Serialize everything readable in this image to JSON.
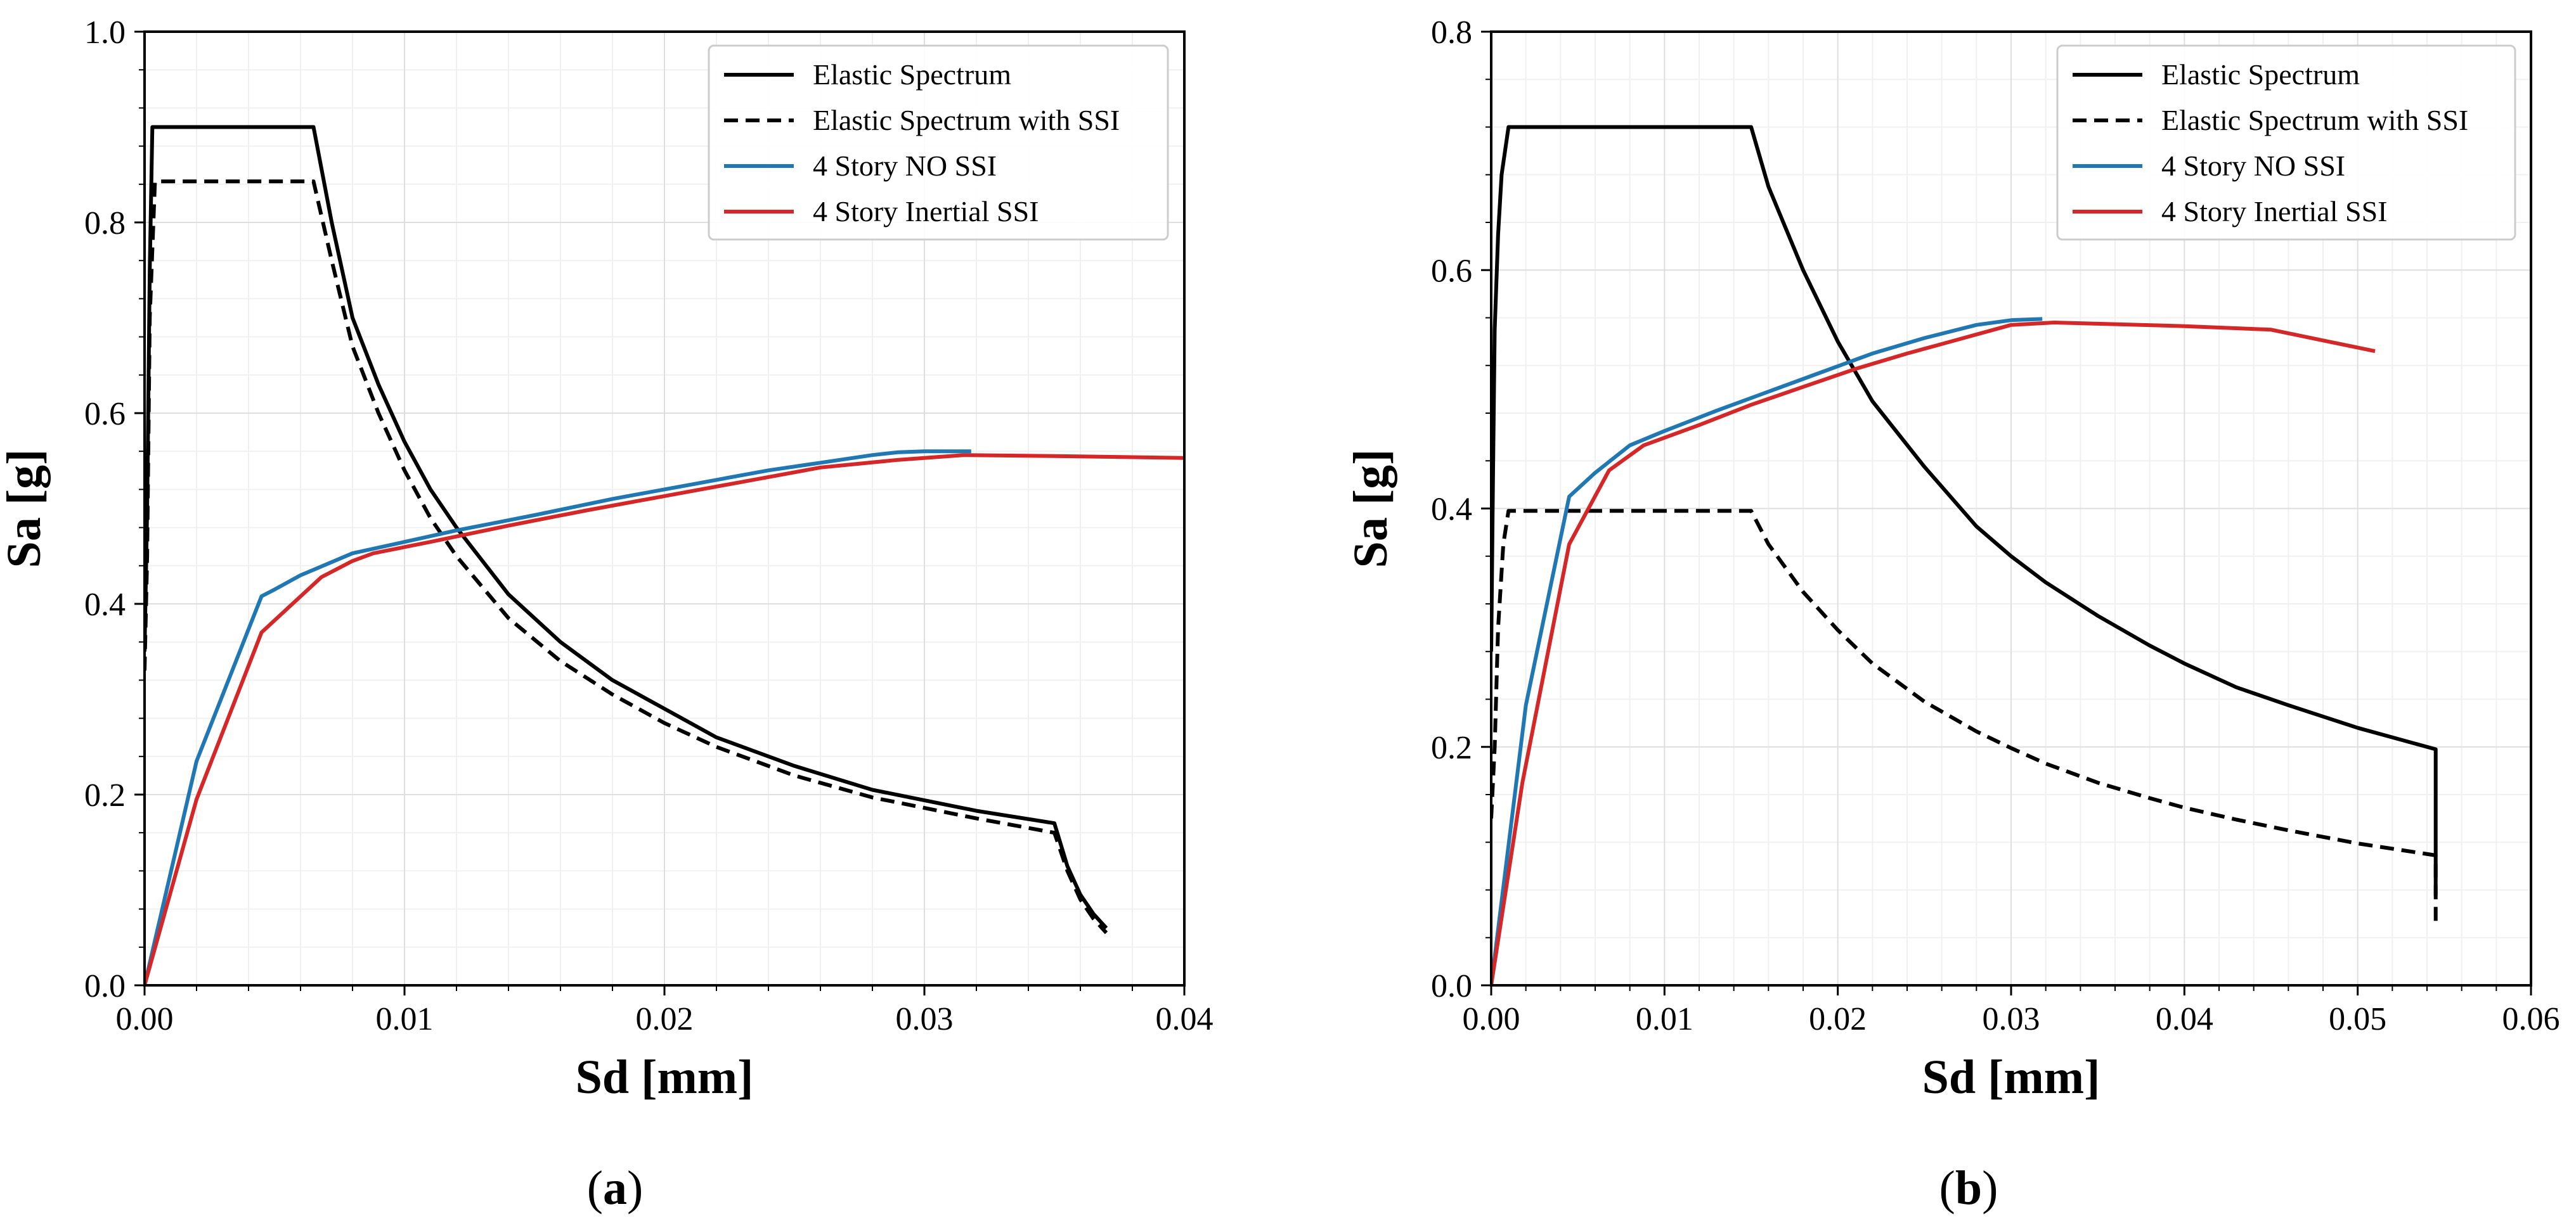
{
  "chart_data": [
    {
      "type": "line",
      "panel_id": "a",
      "caption_letter": "a",
      "xlabel": "Sd [mm]",
      "ylabel": "Sa [g]",
      "xlim": [
        0,
        0.04
      ],
      "ylim": [
        0,
        1.0
      ],
      "xticks": [
        0.0,
        0.01,
        0.02,
        0.03,
        0.04
      ],
      "xtick_labels": [
        "0.00",
        "0.01",
        "0.02",
        "0.03",
        "0.04"
      ],
      "yticks": [
        0.0,
        0.2,
        0.4,
        0.6,
        0.8,
        1.0
      ],
      "ytick_labels": [
        "0.0",
        "0.2",
        "0.4",
        "0.6",
        "0.8",
        "1.0"
      ],
      "grid": true,
      "legend_position": "top-right",
      "series": [
        {
          "name": "Elastic Spectrum",
          "color": "#000000",
          "dash": "solid",
          "points": [
            [
              0,
              0.35
            ],
            [
              0.0001,
              0.5
            ],
            [
              0.0002,
              0.75
            ],
            [
              0.0003,
              0.9
            ],
            [
              0.0065,
              0.9
            ],
            [
              0.0072,
              0.8
            ],
            [
              0.008,
              0.7
            ],
            [
              0.009,
              0.63
            ],
            [
              0.01,
              0.57
            ],
            [
              0.011,
              0.52
            ],
            [
              0.012,
              0.48
            ],
            [
              0.014,
              0.41
            ],
            [
              0.016,
              0.36
            ],
            [
              0.018,
              0.32
            ],
            [
              0.02,
              0.29
            ],
            [
              0.022,
              0.26
            ],
            [
              0.025,
              0.23
            ],
            [
              0.028,
              0.205
            ],
            [
              0.032,
              0.183
            ],
            [
              0.035,
              0.17
            ],
            [
              0.0355,
              0.125
            ],
            [
              0.036,
              0.095
            ],
            [
              0.0365,
              0.075
            ],
            [
              0.037,
              0.06
            ]
          ]
        },
        {
          "name": "Elastic Spectrum with SSI",
          "color": "#000000",
          "dash": "dashed",
          "points": [
            [
              0,
              0.33
            ],
            [
              0.0001,
              0.45
            ],
            [
              0.0002,
              0.7
            ],
            [
              0.0004,
              0.843
            ],
            [
              0.0065,
              0.843
            ],
            [
              0.0072,
              0.76
            ],
            [
              0.008,
              0.67
            ],
            [
              0.009,
              0.6
            ],
            [
              0.01,
              0.54
            ],
            [
              0.011,
              0.49
            ],
            [
              0.012,
              0.45
            ],
            [
              0.014,
              0.385
            ],
            [
              0.016,
              0.34
            ],
            [
              0.018,
              0.305
            ],
            [
              0.02,
              0.275
            ],
            [
              0.022,
              0.25
            ],
            [
              0.025,
              0.22
            ],
            [
              0.028,
              0.197
            ],
            [
              0.032,
              0.175
            ],
            [
              0.035,
              0.16
            ],
            [
              0.0355,
              0.12
            ],
            [
              0.036,
              0.09
            ],
            [
              0.0365,
              0.07
            ],
            [
              0.037,
              0.055
            ]
          ]
        },
        {
          "name": "4 Story NO SSI",
          "color": "#1f77b4",
          "dash": "solid",
          "points": [
            [
              0,
              0
            ],
            [
              0.002,
              0.235
            ],
            [
              0.0045,
              0.408
            ],
            [
              0.005,
              0.415
            ],
            [
              0.006,
              0.43
            ],
            [
              0.008,
              0.453
            ],
            [
              0.01,
              0.465
            ],
            [
              0.012,
              0.477
            ],
            [
              0.015,
              0.493
            ],
            [
              0.018,
              0.51
            ],
            [
              0.021,
              0.525
            ],
            [
              0.024,
              0.54
            ],
            [
              0.026,
              0.548
            ],
            [
              0.028,
              0.556
            ],
            [
              0.029,
              0.559
            ],
            [
              0.03,
              0.56
            ],
            [
              0.0318,
              0.56
            ]
          ]
        },
        {
          "name": "4 Story Inertial SSI",
          "color": "#d62728",
          "dash": "solid",
          "points": [
            [
              0,
              0
            ],
            [
              0.002,
              0.195
            ],
            [
              0.0045,
              0.37
            ],
            [
              0.0068,
              0.428
            ],
            [
              0.008,
              0.445
            ],
            [
              0.0088,
              0.453
            ],
            [
              0.011,
              0.465
            ],
            [
              0.014,
              0.482
            ],
            [
              0.017,
              0.498
            ],
            [
              0.02,
              0.513
            ],
            [
              0.023,
              0.528
            ],
            [
              0.026,
              0.543
            ],
            [
              0.029,
              0.551
            ],
            [
              0.0315,
              0.556
            ],
            [
              0.035,
              0.555
            ],
            [
              0.04,
              0.553
            ]
          ]
        }
      ]
    },
    {
      "type": "line",
      "panel_id": "b",
      "caption_letter": "b",
      "xlabel": "Sd [mm]",
      "ylabel": "Sa [g]",
      "xlim": [
        0,
        0.06
      ],
      "ylim": [
        0,
        0.8
      ],
      "xticks": [
        0.0,
        0.01,
        0.02,
        0.03,
        0.04,
        0.05,
        0.06
      ],
      "xtick_labels": [
        "0.00",
        "0.01",
        "0.02",
        "0.03",
        "0.04",
        "0.05",
        "0.06"
      ],
      "yticks": [
        0.0,
        0.2,
        0.4,
        0.6,
        0.8
      ],
      "ytick_labels": [
        "0.0",
        "0.2",
        "0.4",
        "0.6",
        "0.8"
      ],
      "grid": true,
      "legend_position": "top-right",
      "series": [
        {
          "name": "Elastic Spectrum",
          "color": "#000000",
          "dash": "solid",
          "points": [
            [
              0,
              0.28
            ],
            [
              0.0001,
              0.42
            ],
            [
              0.0002,
              0.55
            ],
            [
              0.0004,
              0.63
            ],
            [
              0.0006,
              0.68
            ],
            [
              0.001,
              0.72
            ],
            [
              0.015,
              0.72
            ],
            [
              0.016,
              0.67
            ],
            [
              0.018,
              0.6
            ],
            [
              0.02,
              0.54
            ],
            [
              0.022,
              0.49
            ],
            [
              0.025,
              0.435
            ],
            [
              0.028,
              0.385
            ],
            [
              0.03,
              0.36
            ],
            [
              0.032,
              0.338
            ],
            [
              0.035,
              0.31
            ],
            [
              0.038,
              0.285
            ],
            [
              0.04,
              0.27
            ],
            [
              0.043,
              0.25
            ],
            [
              0.046,
              0.235
            ],
            [
              0.05,
              0.216
            ],
            [
              0.0545,
              0.198
            ],
            [
              0.0545,
              0.075
            ]
          ]
        },
        {
          "name": "Elastic Spectrum with SSI",
          "color": "#000000",
          "dash": "dashed",
          "points": [
            [
              0,
              0.14
            ],
            [
              0.0002,
              0.2
            ],
            [
              0.0004,
              0.3
            ],
            [
              0.0007,
              0.37
            ],
            [
              0.001,
              0.398
            ],
            [
              0.015,
              0.398
            ],
            [
              0.016,
              0.37
            ],
            [
              0.018,
              0.33
            ],
            [
              0.02,
              0.298
            ],
            [
              0.022,
              0.27
            ],
            [
              0.025,
              0.238
            ],
            [
              0.028,
              0.213
            ],
            [
              0.03,
              0.199
            ],
            [
              0.032,
              0.186
            ],
            [
              0.035,
              0.17
            ],
            [
              0.038,
              0.157
            ],
            [
              0.04,
              0.149
            ],
            [
              0.043,
              0.139
            ],
            [
              0.046,
              0.13
            ],
            [
              0.05,
              0.119
            ],
            [
              0.0545,
              0.109
            ],
            [
              0.0545,
              0.05
            ]
          ]
        },
        {
          "name": "4 Story NO SSI",
          "color": "#1f77b4",
          "dash": "solid",
          "points": [
            [
              0,
              0
            ],
            [
              0.002,
              0.235
            ],
            [
              0.0045,
              0.41
            ],
            [
              0.006,
              0.43
            ],
            [
              0.008,
              0.453
            ],
            [
              0.01,
              0.465
            ],
            [
              0.013,
              0.482
            ],
            [
              0.016,
              0.498
            ],
            [
              0.019,
              0.514
            ],
            [
              0.022,
              0.53
            ],
            [
              0.025,
              0.543
            ],
            [
              0.028,
              0.554
            ],
            [
              0.03,
              0.558
            ],
            [
              0.0318,
              0.559
            ]
          ]
        },
        {
          "name": "4 Story Inertial SSI",
          "color": "#d62728",
          "dash": "solid",
          "points": [
            [
              0,
              0
            ],
            [
              0.0018,
              0.17
            ],
            [
              0.0045,
              0.37
            ],
            [
              0.0068,
              0.432
            ],
            [
              0.0088,
              0.453
            ],
            [
              0.012,
              0.47
            ],
            [
              0.015,
              0.487
            ],
            [
              0.018,
              0.502
            ],
            [
              0.021,
              0.517
            ],
            [
              0.024,
              0.53
            ],
            [
              0.027,
              0.542
            ],
            [
              0.03,
              0.554
            ],
            [
              0.0325,
              0.556
            ],
            [
              0.035,
              0.555
            ],
            [
              0.04,
              0.553
            ],
            [
              0.045,
              0.55
            ],
            [
              0.051,
              0.532
            ]
          ]
        }
      ]
    }
  ]
}
